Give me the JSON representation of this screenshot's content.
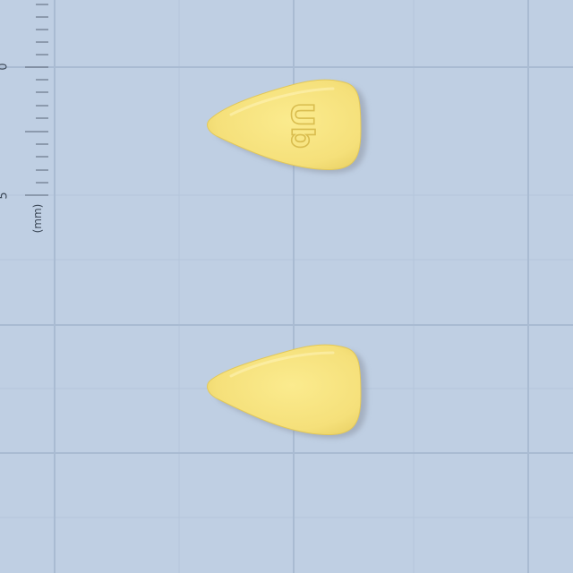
{
  "scale": {
    "numbers": [
      "0",
      "5"
    ],
    "unit_label": "(mm)"
  },
  "tablets": [
    {
      "side": "front",
      "imprint": "Ub"
    },
    {
      "side": "back",
      "imprint": ""
    }
  ],
  "colors": {
    "background": "#bfcfe3",
    "grid_line": "#a9bbd2",
    "tablet_fill": "#f5e27a",
    "tablet_shadow": "#8f97a6"
  }
}
